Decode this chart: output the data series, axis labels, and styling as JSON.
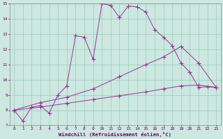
{
  "xlabel": "Windchill (Refroidissement éolien,°C)",
  "bg_color": "#cce8e0",
  "grid_color": "#99ccbb",
  "line_color": "#993399",
  "xlim": [
    -0.5,
    23.5
  ],
  "ylim": [
    7,
    15
  ],
  "xticks": [
    0,
    1,
    2,
    3,
    4,
    5,
    6,
    7,
    8,
    9,
    10,
    11,
    12,
    13,
    14,
    15,
    16,
    17,
    18,
    19,
    20,
    21,
    22,
    23
  ],
  "yticks": [
    7,
    8,
    9,
    10,
    11,
    12,
    13,
    14,
    15
  ],
  "line1_x": [
    0,
    1,
    2,
    3,
    4,
    5,
    6,
    7,
    8,
    9,
    10,
    11,
    12,
    13,
    14,
    15,
    16,
    17,
    18,
    19,
    20,
    21,
    22,
    23
  ],
  "line1_y": [
    8.0,
    7.3,
    8.2,
    8.3,
    7.8,
    9.0,
    9.6,
    12.9,
    12.8,
    11.35,
    15.0,
    14.9,
    14.1,
    14.85,
    14.8,
    14.45,
    13.3,
    12.8,
    12.25,
    11.1,
    10.5,
    9.5,
    9.55,
    9.5
  ],
  "line2_x": [
    0,
    3,
    6,
    9,
    12,
    15,
    17,
    19,
    21,
    23
  ],
  "line2_y": [
    8.0,
    8.5,
    8.85,
    9.4,
    10.2,
    11.0,
    11.5,
    12.2,
    11.1,
    9.5
  ],
  "line3_x": [
    0,
    3,
    6,
    9,
    12,
    15,
    17,
    19,
    21,
    23
  ],
  "line3_y": [
    8.0,
    8.2,
    8.45,
    8.7,
    8.95,
    9.2,
    9.4,
    9.6,
    9.65,
    9.5
  ]
}
